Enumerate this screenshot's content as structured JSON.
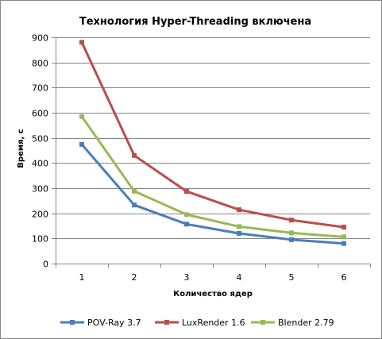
{
  "chart_data": {
    "type": "line",
    "title": "Технология Hyper-Threading включена",
    "xlabel": "Количество ядер",
    "ylabel": "Время, с",
    "x": [
      1,
      2,
      3,
      4,
      5,
      6
    ],
    "x_tick_labels": [
      "1",
      "2",
      "3",
      "4",
      "5",
      "6"
    ],
    "ylim": [
      0,
      900
    ],
    "y_ticks": [
      0,
      100,
      200,
      300,
      400,
      500,
      600,
      700,
      800,
      900
    ],
    "grid": "horizontal",
    "legend_position": "bottom",
    "series": [
      {
        "name": "POV-Ray 3.7",
        "color": "#4a7ebb",
        "values": [
          474,
          233,
          157,
          120,
          95,
          80
        ]
      },
      {
        "name": "LuxRender 1.6",
        "color": "#be4b48",
        "values": [
          880,
          430,
          287,
          214,
          173,
          145
        ]
      },
      {
        "name": "Blender 2.79",
        "color": "#98b954",
        "values": [
          585,
          288,
          195,
          147,
          122,
          106
        ]
      }
    ]
  }
}
